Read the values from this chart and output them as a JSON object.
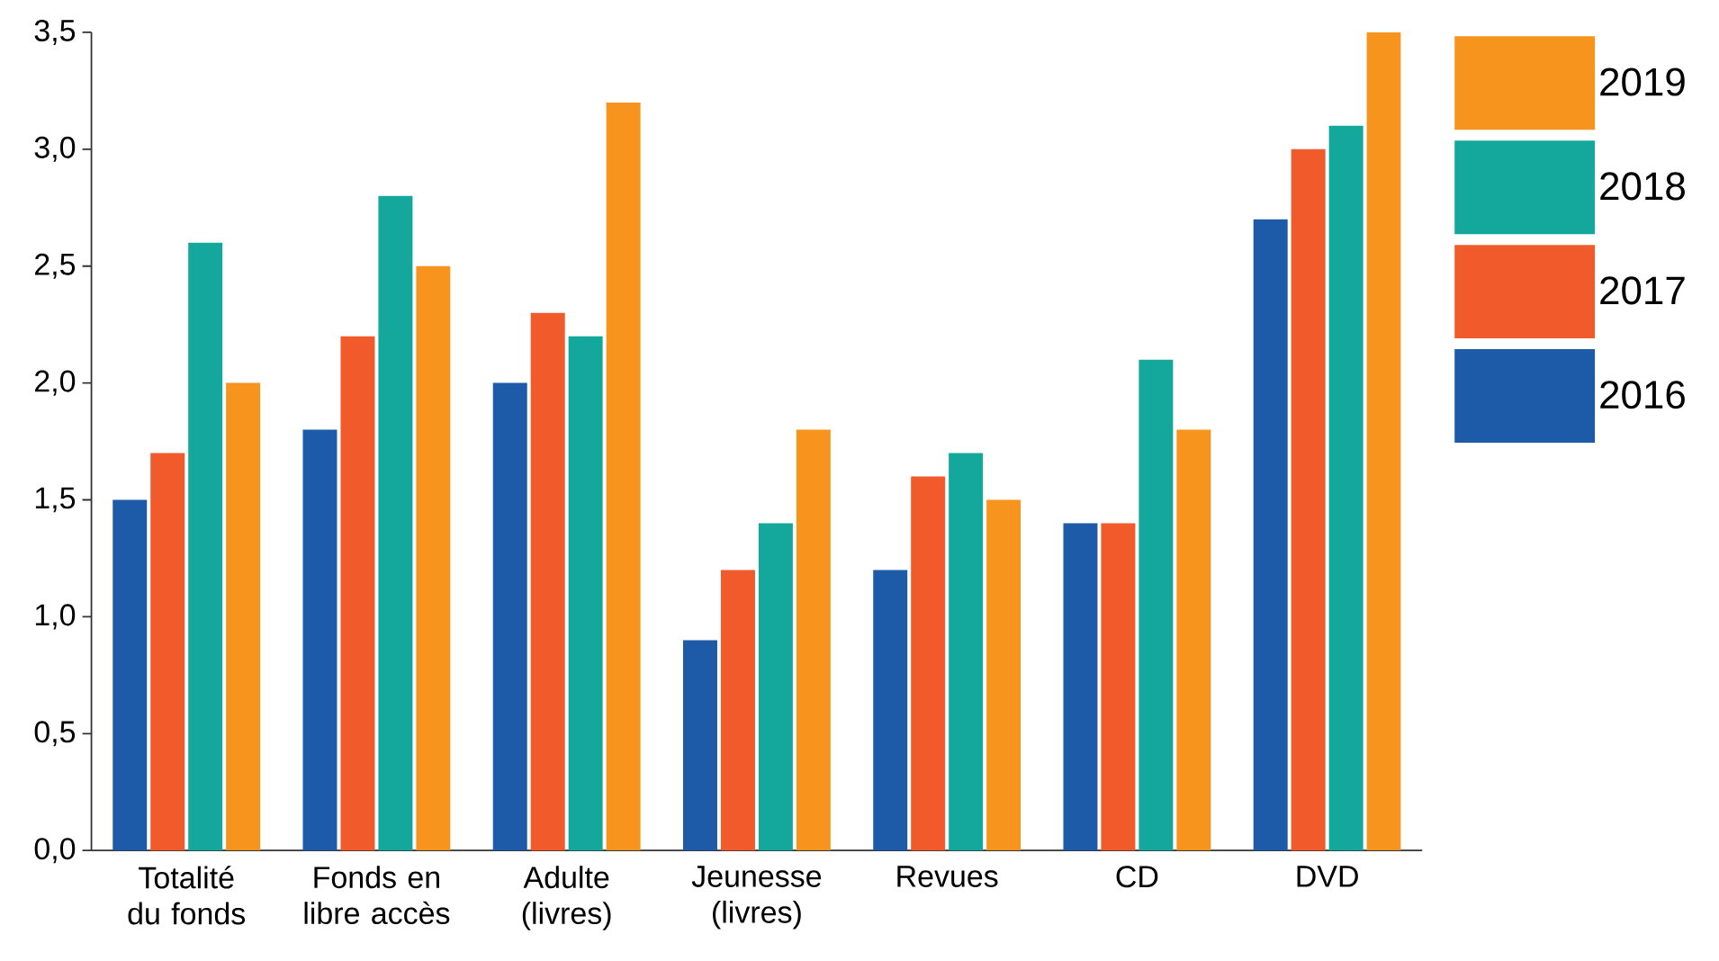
{
  "chart_data": {
    "type": "bar",
    "categories": [
      "Totalité du fonds",
      "Fonds en libre accès",
      "Adulte (livres)",
      "Jeunesse (livres)",
      "Revues",
      "CD",
      "DVD"
    ],
    "series": [
      {
        "name": "2016",
        "color": "#1d5aa8",
        "values": [
          1.5,
          1.8,
          2.0,
          0.9,
          1.2,
          1.4,
          2.7
        ]
      },
      {
        "name": "2017",
        "color": "#f15a2b",
        "values": [
          1.7,
          2.2,
          2.3,
          1.2,
          1.6,
          1.4,
          3.0
        ]
      },
      {
        "name": "2018",
        "color": "#14a89c",
        "values": [
          2.6,
          2.8,
          2.2,
          1.4,
          1.7,
          2.1,
          3.1
        ]
      },
      {
        "name": "2019",
        "color": "#f7941d",
        "values": [
          2.0,
          2.5,
          3.2,
          1.8,
          1.5,
          1.8,
          3.5
        ]
      }
    ],
    "ylim": [
      0,
      3.5
    ],
    "yticks": [
      {
        "value": 0,
        "label": "0,0"
      },
      {
        "value": 0.5,
        "label": "0,5"
      },
      {
        "value": 1,
        "label": "1,0"
      },
      {
        "value": 1.5,
        "label": "1,5"
      },
      {
        "value": 2,
        "label": "2,0"
      },
      {
        "value": 2.5,
        "label": "2,5"
      },
      {
        "value": 3,
        "label": "3,0"
      },
      {
        "value": 3.5,
        "label": "3,5"
      }
    ],
    "legend": "top right"
  }
}
